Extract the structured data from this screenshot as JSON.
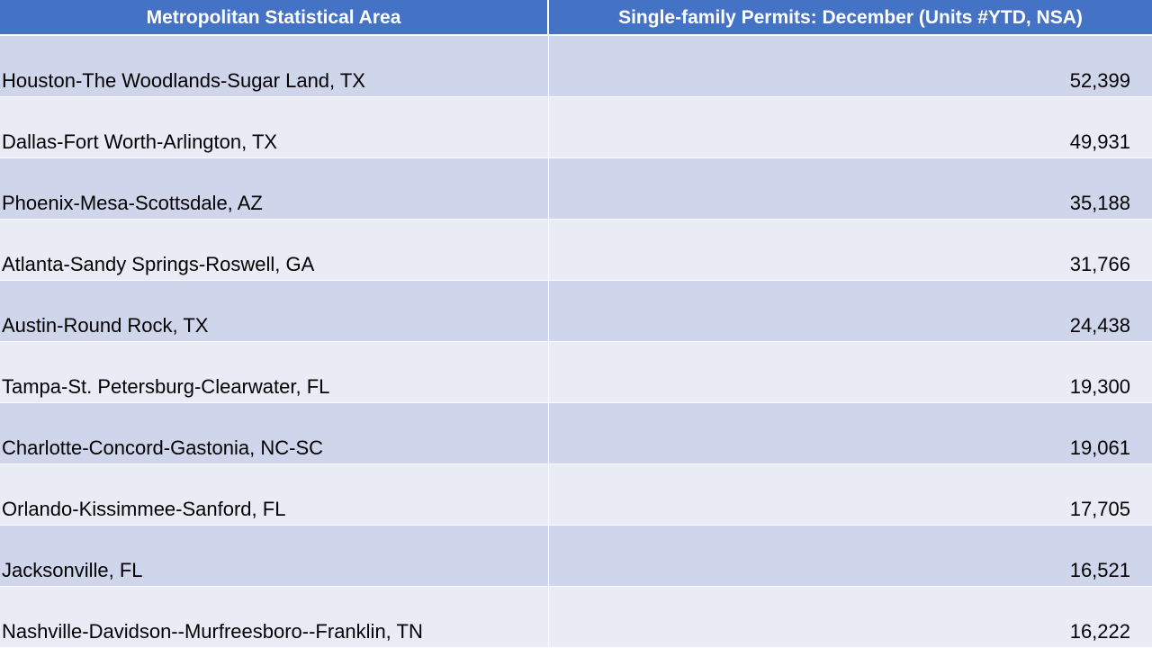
{
  "chart_data": {
    "type": "table",
    "columns": [
      "Metropolitan Statistical Area",
      "Single-family Permits: December (Units #YTD, NSA)"
    ],
    "rows": [
      {
        "area": "Houston-The Woodlands-Sugar Land, TX",
        "value": "52,399"
      },
      {
        "area": "Dallas-Fort Worth-Arlington, TX",
        "value": "49,931"
      },
      {
        "area": "Phoenix-Mesa-Scottsdale, AZ",
        "value": "35,188"
      },
      {
        "area": "Atlanta-Sandy Springs-Roswell, GA",
        "value": "31,766"
      },
      {
        "area": "Austin-Round Rock, TX",
        "value": "24,438"
      },
      {
        "area": "Tampa-St. Petersburg-Clearwater, FL",
        "value": "19,300"
      },
      {
        "area": "Charlotte-Concord-Gastonia, NC-SC",
        "value": "19,061"
      },
      {
        "area": "Orlando-Kissimmee-Sanford, FL",
        "value": "17,705"
      },
      {
        "area": "Jacksonville, FL",
        "value": "16,521"
      },
      {
        "area": "Nashville-Davidson--Murfreesboro--Franklin, TN",
        "value": "16,222"
      }
    ]
  },
  "colors": {
    "header_bg": "#4472c4",
    "row_odd": "#cfd5ea",
    "row_even": "#e9ebf5"
  }
}
